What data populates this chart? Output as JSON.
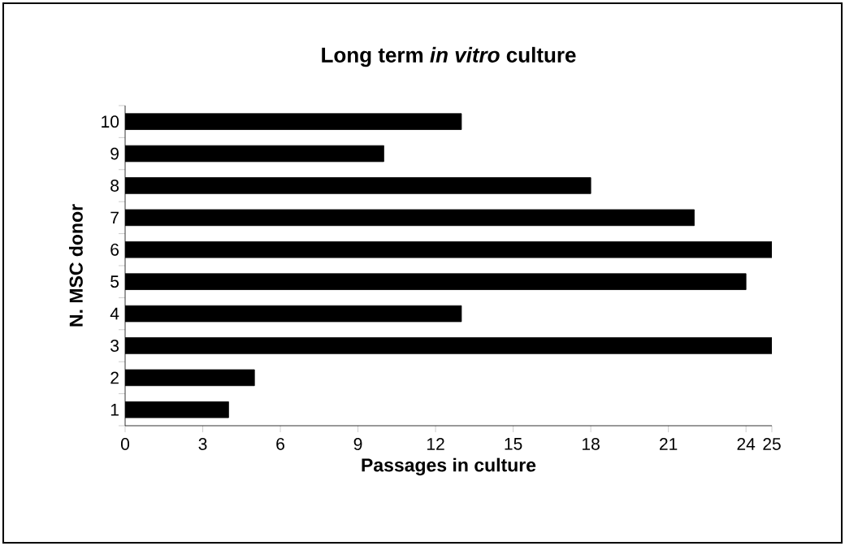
{
  "chart_data": {
    "type": "bar",
    "orientation": "horizontal",
    "title": "Long term *in vitro* culture",
    "xlabel": "Passages in culture",
    "ylabel": "N. MSC donor",
    "categories": [
      "10",
      "9",
      "8",
      "7",
      "6",
      "5",
      "4",
      "3",
      "2",
      "1"
    ],
    "values": [
      13,
      10,
      18,
      22,
      25,
      24,
      13,
      25,
      5,
      4
    ],
    "color": "#000000",
    "xlim": [
      0,
      25
    ],
    "xticks": [
      0,
      3,
      6,
      9,
      12,
      15,
      18,
      21,
      24,
      25
    ],
    "grid": false
  }
}
